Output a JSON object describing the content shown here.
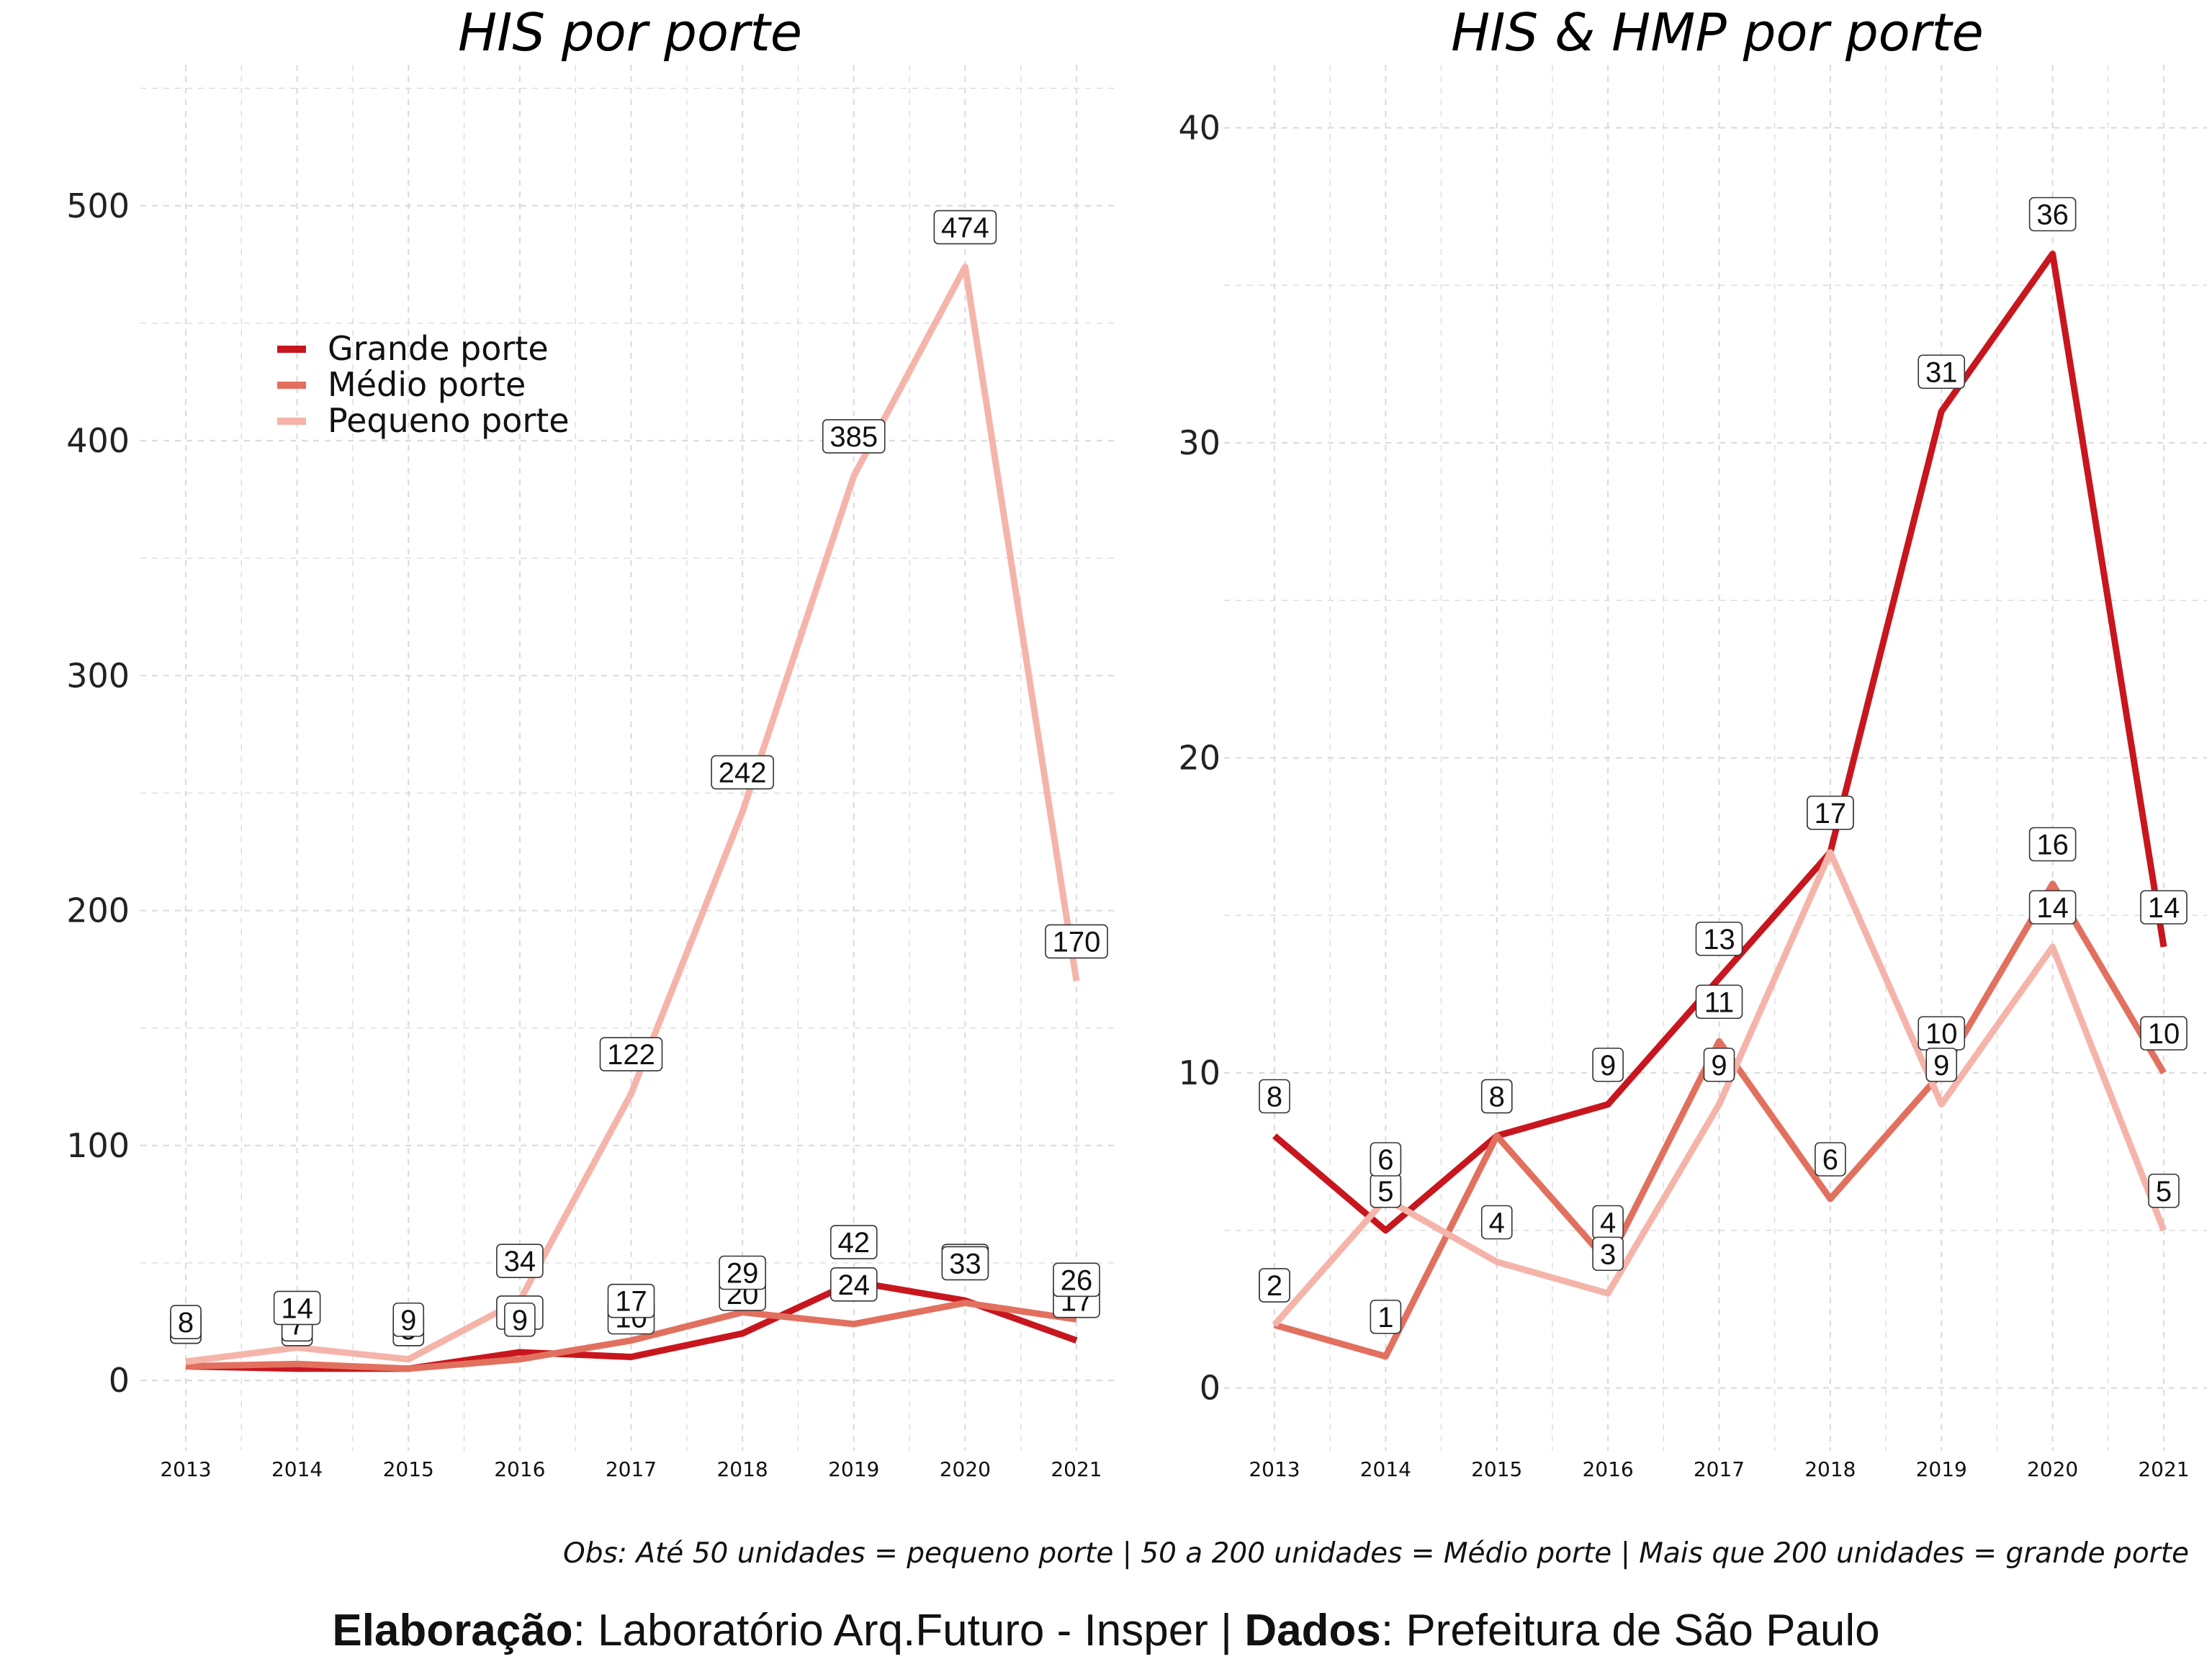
{
  "colors": {
    "grande": "#c8161e",
    "medio": "#e2705f",
    "pequeno": "#f5b4aa",
    "grid": "#dcdcdc"
  },
  "legend": {
    "placement": "top-left of left panel",
    "items": [
      "Grande porte",
      "Médio porte",
      "Pequeno porte"
    ]
  },
  "note": "Obs: Até 50 unidades = pequeno porte | 50 a 200 unidades = Médio porte | Mais que 200 unidades = grande porte",
  "credit": {
    "label1": "Elaboração",
    "text1": ": Laboratório Arq.Futuro - Insper | ",
    "label2": "Dados",
    "text2": ": Prefeitura de São Paulo"
  },
  "chart_data": [
    {
      "type": "line",
      "title": "HIS por porte",
      "xlabel": "",
      "ylabel": "",
      "x": [
        2013,
        2014,
        2015,
        2016,
        2017,
        2018,
        2019,
        2020,
        2021
      ],
      "ylim": [
        -30,
        560
      ],
      "yticks": [
        0,
        100,
        200,
        300,
        400,
        500
      ],
      "grid": true,
      "series": [
        {
          "name": "Grande porte",
          "color": "#c8161e",
          "values": [
            6,
            5,
            5,
            12,
            10,
            20,
            42,
            34,
            17
          ]
        },
        {
          "name": "Médio porte",
          "color": "#e2705f",
          "values": [
            6,
            7,
            5,
            9,
            17,
            29,
            24,
            33,
            26
          ]
        },
        {
          "name": "Pequeno porte",
          "color": "#f5b4aa",
          "values": [
            8,
            14,
            9,
            34,
            122,
            242,
            385,
            474,
            170
          ]
        }
      ]
    },
    {
      "type": "line",
      "title": "HIS & HMP por porte",
      "xlabel": "",
      "ylabel": "",
      "x": [
        2013,
        2014,
        2015,
        2016,
        2017,
        2018,
        2019,
        2020,
        2021
      ],
      "ylim": [
        -2,
        42
      ],
      "yticks": [
        0,
        10,
        20,
        30,
        40
      ],
      "grid": true,
      "series": [
        {
          "name": "Grande porte",
          "color": "#c8161e",
          "values": [
            8,
            5,
            8,
            9,
            13,
            17,
            31,
            36,
            14
          ]
        },
        {
          "name": "Médio porte",
          "color": "#e2705f",
          "values": [
            2,
            1,
            8,
            4,
            11,
            6,
            10,
            16,
            10
          ]
        },
        {
          "name": "Pequeno porte",
          "color": "#f5b4aa",
          "values": [
            2,
            6,
            4,
            3,
            9,
            17,
            9,
            14,
            5
          ]
        }
      ]
    }
  ]
}
